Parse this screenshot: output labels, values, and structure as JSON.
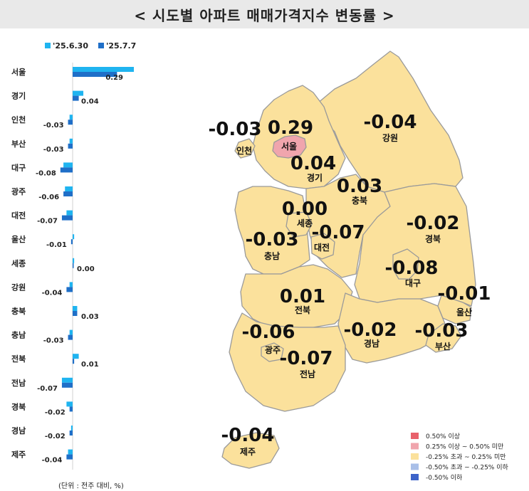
{
  "title": "< 시도별 아파트 매매가격지수 변동률 >",
  "legend_chart": {
    "prev_label": "'25.6.30",
    "curr_label": "'25.7.7",
    "prev_color": "#1fb4f0",
    "curr_color": "#1f6fc8"
  },
  "chart_data": {
    "type": "bar",
    "orientation": "horizontal",
    "categories": [
      "서울",
      "경기",
      "인천",
      "부산",
      "대구",
      "광주",
      "대전",
      "울산",
      "세종",
      "강원",
      "충북",
      "충남",
      "전북",
      "전남",
      "경북",
      "경남",
      "제주"
    ],
    "series": [
      {
        "name": "'25.6.30",
        "values": [
          0.4,
          0.07,
          -0.02,
          -0.02,
          -0.06,
          -0.05,
          -0.04,
          0.01,
          0.01,
          -0.02,
          0.03,
          -0.02,
          0.04,
          -0.07,
          -0.04,
          -0.01,
          -0.03
        ]
      },
      {
        "name": "'25.7.7",
        "values": [
          0.29,
          0.04,
          -0.03,
          -0.03,
          -0.08,
          -0.06,
          -0.07,
          -0.01,
          0.0,
          -0.04,
          0.03,
          -0.03,
          0.01,
          -0.07,
          -0.02,
          -0.02,
          -0.04
        ]
      }
    ],
    "value_labels": [
      "0.29",
      "0.04",
      "-0.03",
      "-0.03",
      "-0.08",
      "-0.06",
      "-0.07",
      "-0.01",
      "0.00",
      "-0.04",
      "0.03",
      "-0.03",
      "0.01",
      "-0.07",
      "-0.02",
      "-0.02",
      "-0.04"
    ],
    "unit_note": "(단위 : 전주 대비, %)"
  },
  "map_regions": [
    {
      "key": "seoul",
      "name": "서울",
      "value": "0.29",
      "color": "#f0a5ad"
    },
    {
      "key": "incheon",
      "name": "인천",
      "value": "-0.03",
      "color": "#fbe19c"
    },
    {
      "key": "gyeonggi",
      "name": "경기",
      "value": "0.04",
      "color": "#fbe19c"
    },
    {
      "key": "gangwon",
      "name": "강원",
      "value": "-0.04",
      "color": "#fbe19c"
    },
    {
      "key": "chungbuk",
      "name": "충북",
      "value": "0.03",
      "color": "#fbe19c"
    },
    {
      "key": "sejong",
      "name": "세종",
      "value": "0.00",
      "color": "#fbe19c"
    },
    {
      "key": "chungnam",
      "name": "충남",
      "value": "-0.03",
      "color": "#fbe19c"
    },
    {
      "key": "daejeon",
      "name": "대전",
      "value": "-0.07",
      "color": "#fbe19c"
    },
    {
      "key": "gyeongbuk",
      "name": "경북",
      "value": "-0.02",
      "color": "#fbe19c"
    },
    {
      "key": "daegu",
      "name": "대구",
      "value": "-0.08",
      "color": "#fbe19c"
    },
    {
      "key": "ulsan",
      "name": "울산",
      "value": "-0.01",
      "color": "#fbe19c"
    },
    {
      "key": "jeonbuk",
      "name": "전북",
      "value": "0.01",
      "color": "#fbe19c"
    },
    {
      "key": "gwangju",
      "name": "광주",
      "value": "-0.06",
      "color": "#fbe19c"
    },
    {
      "key": "jeonnam",
      "name": "전남",
      "value": "-0.07",
      "color": "#fbe19c"
    },
    {
      "key": "gyeongnam",
      "name": "경남",
      "value": "-0.02",
      "color": "#fbe19c"
    },
    {
      "key": "busan",
      "name": "부산",
      "value": "-0.03",
      "color": "#fbe19c"
    },
    {
      "key": "jeju",
      "name": "제주",
      "value": "-0.04",
      "color": "#fbe19c"
    }
  ],
  "map_legend": [
    {
      "label": "0.50% 이상",
      "color": "#e8616b"
    },
    {
      "label": "0.25% 이상 ~ 0.50% 미만",
      "color": "#f0a5ad"
    },
    {
      "label": "-0.25% 초과 ~ 0.25% 미만",
      "color": "#fbe19c"
    },
    {
      "label": "-0.50% 초과 ~ -0.25% 이하",
      "color": "#a9bfe8"
    },
    {
      "label": "-0.50% 이하",
      "color": "#3d63c9"
    }
  ]
}
